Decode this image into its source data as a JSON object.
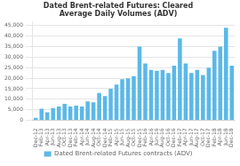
{
  "chart_data": {
    "type": "bar",
    "title": "Dated Brent-related Futures: Cleared\nAverage Daily Volumes (ADV)",
    "categories": [
      "Dec-12",
      "Feb-13",
      "Apr-13",
      "Jun-13",
      "Aug-13",
      "Oct-13",
      "Dec-13",
      "Feb-14",
      "Apr-14",
      "Jun-14",
      "Aug-14",
      "Oct-14",
      "Dec-14",
      "Feb-15",
      "Apr-15",
      "Jun-15",
      "Aug-15",
      "Oct-15",
      "Dec-15",
      "Feb-16",
      "Apr-16",
      "Jun-16",
      "Aug-16",
      "Oct-16",
      "Dec-16",
      "Feb-17",
      "Apr-17",
      "Jun-17",
      "Aug-17",
      "Oct-17",
      "Dec-17",
      "Feb-18",
      "Apr-18",
      "Jun-18",
      "Dec-18"
    ],
    "series": [
      {
        "name": "Dated Brent-related Futures contracts (ADV)",
        "color": "#5bb8e8",
        "values": [
          1200,
          5500,
          3800,
          5800,
          6500,
          7800,
          6500,
          7000,
          6500,
          9000,
          8500,
          13000,
          11500,
          15000,
          17000,
          19500,
          20000,
          21000,
          35000,
          27000,
          24000,
          23500,
          24000,
          22500,
          26000,
          39000,
          27000,
          22500,
          24000,
          21500,
          25000,
          33000,
          35000,
          44000,
          26000
        ]
      }
    ],
    "ylim": [
      0,
      47000
    ],
    "yticks": [
      0,
      {
        "value": 5000,
        "label": "5,000"
      },
      {
        "value": 10000,
        "label": "10,000"
      },
      {
        "value": 15000,
        "label": "15,000"
      },
      {
        "value": 20000,
        "label": "20,000"
      },
      {
        "value": 25000,
        "label": "25,000"
      },
      {
        "value": 30000,
        "label": "30,000"
      },
      {
        "value": 35000,
        "label": "35,000"
      },
      {
        "value": 40000,
        "label": "40,000"
      },
      {
        "value": 45000,
        "label": "45,000"
      }
    ],
    "grid": true,
    "legend": "bottom"
  }
}
